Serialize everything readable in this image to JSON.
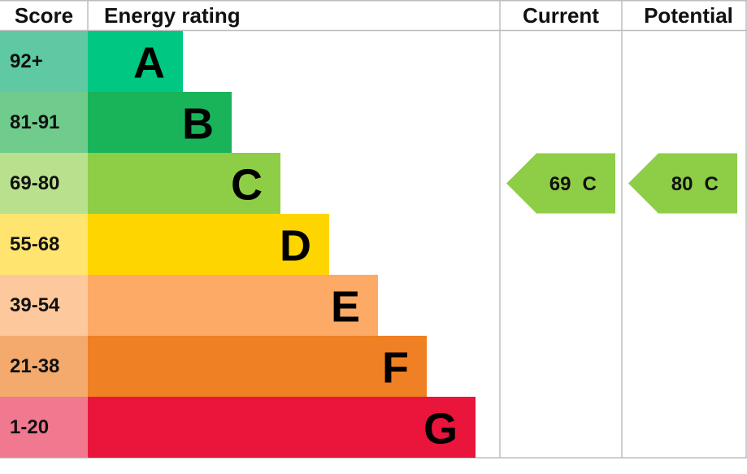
{
  "header": {
    "score": "Score",
    "energy_rating": "Energy rating",
    "current": "Current",
    "potential": "Potential"
  },
  "bands": [
    {
      "score": "92+",
      "letter": "A",
      "color": "#00c781",
      "score_color": "#5ec9a2"
    },
    {
      "score": "81-91",
      "letter": "B",
      "color": "#19b459",
      "score_color": "#6fcc8c"
    },
    {
      "score": "69-80",
      "letter": "C",
      "color": "#8dce46",
      "score_color": "#b9e08d"
    },
    {
      "score": "55-68",
      "letter": "D",
      "color": "#ffd500",
      "score_color": "#ffe46f"
    },
    {
      "score": "39-54",
      "letter": "E",
      "color": "#fcaa65",
      "score_color": "#fdc89c"
    },
    {
      "score": "21-38",
      "letter": "F",
      "color": "#ef8023",
      "score_color": "#f4aa6c"
    },
    {
      "score": "1-20",
      "letter": "G",
      "color": "#e9153b",
      "score_color": "#f07990"
    }
  ],
  "current": {
    "score": 69,
    "letter": "C"
  },
  "potential": {
    "score": 80,
    "letter": "C"
  }
}
